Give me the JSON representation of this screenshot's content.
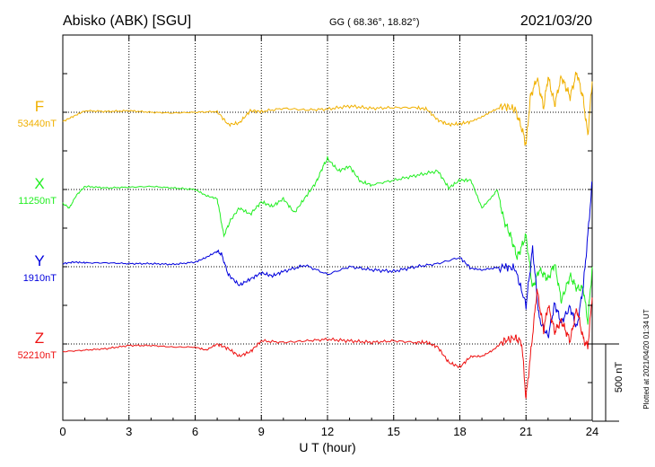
{
  "header": {
    "station": "Abisko (ABK)  [SGU]",
    "coords": "GG ( 68.36°,  18.82°)",
    "date": "2021/03/20"
  },
  "footer": {
    "plotted": "Plotted at 2021/04/20 01:34 UT"
  },
  "chart_data": {
    "type": "line",
    "title": "",
    "xlabel": "U T (hour)",
    "ylabel": "",
    "x_range": [
      0,
      24
    ],
    "x_ticks": [
      "0",
      "3",
      "6",
      "9",
      "12",
      "15",
      "18",
      "21",
      "24"
    ],
    "scale_bar": "500 nT",
    "grid": "dotted vertical every 3 h; dotted baseline per component",
    "series": [
      {
        "name": "F",
        "baseline_label": "53440nT",
        "color": "#f0b000",
        "x": [
          0,
          0.5,
          1,
          2,
          3,
          4,
          5,
          6,
          7,
          7.5,
          8,
          8.5,
          9,
          10,
          11,
          12,
          13,
          14,
          15,
          16,
          16.5,
          17,
          17.5,
          18,
          18.5,
          19,
          19.5,
          20,
          20.5,
          20.8,
          21,
          21.2,
          21.5,
          21.8,
          22,
          22.3,
          22.6,
          23,
          23.3,
          23.6,
          23.8,
          24
        ],
        "values": [
          -60,
          -25,
          10,
          5,
          10,
          0,
          -5,
          0,
          5,
          -80,
          -70,
          10,
          5,
          25,
          15,
          20,
          40,
          25,
          30,
          30,
          20,
          -50,
          -80,
          -75,
          -60,
          -30,
          10,
          40,
          20,
          -100,
          -210,
          100,
          220,
          30,
          230,
          50,
          230,
          100,
          260,
          80,
          -150,
          200
        ]
      },
      {
        "name": "X",
        "baseline_label": "11250nT",
        "color": "#22ee22",
        "x": [
          0,
          0.3,
          0.6,
          1,
          2,
          3,
          4,
          5,
          6,
          6.5,
          7,
          7.3,
          7.6,
          8,
          8.5,
          9,
          9.5,
          10,
          10.5,
          11,
          11.5,
          11.8,
          12,
          12.5,
          13,
          13.5,
          14,
          15,
          16,
          17,
          17.5,
          18,
          18.5,
          19,
          19.5,
          19.7,
          20,
          20.3,
          20.6,
          21,
          21.3,
          21.6,
          22,
          22.3,
          22.6,
          23,
          23.3,
          23.6,
          23.8,
          24
        ],
        "values": [
          -90,
          -120,
          -40,
          20,
          10,
          15,
          20,
          10,
          0,
          -40,
          -60,
          -300,
          -200,
          -120,
          -160,
          -80,
          -110,
          -60,
          -150,
          -50,
          50,
          150,
          200,
          120,
          150,
          50,
          30,
          60,
          90,
          120,
          10,
          60,
          60,
          -120,
          -40,
          0,
          -200,
          -300,
          -440,
          -300,
          -640,
          -520,
          -580,
          -480,
          -720,
          -560,
          -640,
          -640,
          -860,
          -500
        ]
      },
      {
        "name": "Y",
        "baseline_label": "1910nT",
        "color": "#0000dd",
        "x": [
          0,
          0.5,
          1,
          2,
          3,
          4,
          5,
          6,
          6.5,
          7,
          7.2,
          7.5,
          8,
          8.5,
          9,
          9.5,
          10,
          11,
          12,
          13,
          14,
          15,
          16,
          17,
          18,
          18.5,
          19,
          20,
          20.5,
          21,
          21.3,
          21.6,
          22,
          22.3,
          22.6,
          23,
          23.3,
          23.6,
          23.8,
          24
        ],
        "values": [
          20,
          30,
          25,
          25,
          20,
          20,
          15,
          30,
          60,
          100,
          80,
          -50,
          -120,
          -80,
          -40,
          -60,
          -30,
          10,
          -50,
          0,
          -20,
          -30,
          0,
          20,
          60,
          -10,
          -20,
          0,
          -10,
          -250,
          120,
          -340,
          -450,
          -240,
          -360,
          -260,
          -400,
          -120,
          200,
          550
        ]
      },
      {
        "name": "Z",
        "baseline_label": "52210nT",
        "color": "#ee1111",
        "x": [
          0,
          1,
          2,
          3,
          4,
          5,
          6,
          6.5,
          7,
          7.5,
          8,
          8.5,
          9,
          10,
          11,
          12,
          13,
          14,
          15,
          16,
          16.5,
          17,
          17.5,
          18,
          18.5,
          19,
          19.5,
          20,
          20.5,
          20.8,
          21,
          21.2,
          21.5,
          21.8,
          22,
          22.3,
          22.6,
          23,
          23.3,
          23.6,
          23.8,
          24
        ],
        "values": [
          -50,
          -40,
          -30,
          -10,
          -10,
          -20,
          -20,
          -40,
          0,
          -30,
          -80,
          -50,
          20,
          10,
          20,
          30,
          20,
          10,
          20,
          10,
          10,
          -20,
          -120,
          -150,
          -80,
          -80,
          -40,
          20,
          40,
          10,
          -350,
          -80,
          350,
          90,
          250,
          80,
          150,
          20,
          230,
          30,
          -20,
          300
        ]
      }
    ],
    "nT_per_division": 500
  }
}
